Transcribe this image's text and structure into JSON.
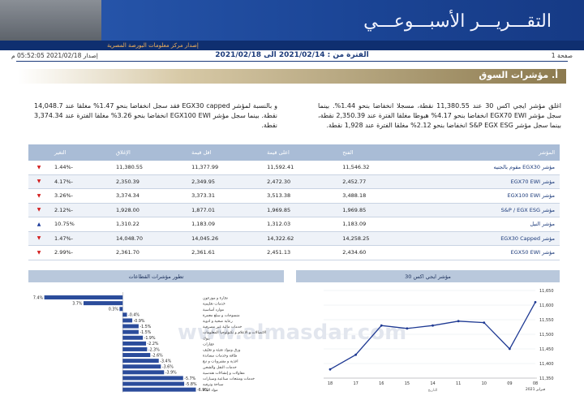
{
  "header": {
    "title": "التقـــريـــر الأسبـــوعـــي",
    "subtitle": "إصدار مركز معلومات البورصة المصرية",
    "page": "صفحة 1",
    "period": "الفترة من : 2021/02/14 الى 2021/02/18",
    "issued": "إصدار 2021/02/18 05:52:05 م"
  },
  "section": {
    "title": "أ. مؤشرات السوق",
    "paragraphs": [
      "اغلق مؤشر ايجي اكس 30 عند 11,380.55 نقطة، مسجلا انخفاضا بنحو 1.44%. بينما سجل مؤشر EGX70 EWI انخفاضا بنحو 4.17% هبوطا مغلقا الفترة عند 2,350.39 نقطة، بينما سجل مؤشر S&P EGX ESG انخفاضا بنحو 2.12% مغلقا الفترة عند 1,928 نقطة.",
      "و بالنسبة لمؤشر EGX30 capped فقد سجل انخفاضا بنحو 1.47% مغلقا عند 14,048.7 نقطة. بينما سجل مؤشر EGX100 EWI انخفاضا بنحو 3.26% مغلقا الفترة عند 3,374.34 نقطة."
    ]
  },
  "table": {
    "columns": [
      "المؤشر",
      "الفتح",
      "اعلى قيمة",
      "اقل قيمة",
      "الإغلاق",
      "التغير"
    ],
    "rows": [
      [
        "مؤشر EGX30 مقوم بالجنيه",
        "11,546.32",
        "11,592.41",
        "11,377.99",
        "11,380.55",
        "-1.44%"
      ],
      [
        "مؤشر EGX70 EWI",
        "2,452.77",
        "2,472.30",
        "2,349.95",
        "2,350.39",
        "-4.17%"
      ],
      [
        "مؤشر EGX100 EWI",
        "3,488.18",
        "3,513.38",
        "3,373.31",
        "3,374.34",
        "-3.26%"
      ],
      [
        "مؤشر S&P / EGX ESG",
        "1,969.85",
        "1,969.85",
        "1,877.01",
        "1,928.00",
        "-2.12%"
      ],
      [
        "مؤشر النيل",
        "1,183.09",
        "1,312.03",
        "1,183.09",
        "1,310.22",
        "10.75%"
      ],
      [
        "مؤشر EGX30 Capped",
        "14,258.25",
        "14,322.62",
        "14,045.26",
        "14,048.70",
        "-1.47%"
      ],
      [
        "مؤشر EGX50 EWI",
        "2,434.60",
        "2,451.13",
        "2,361.61",
        "2,361.70",
        "-2.99%"
      ]
    ]
  },
  "chart_data": [
    {
      "type": "hbar",
      "title": "تطور مؤشرات القطاعات",
      "categories": [
        "تجارة و موزعون",
        "خدمات تعليمية",
        "موارد أساسية",
        "منسوجات و سلع معمرة",
        "رعاية صحية و ادوية",
        "خدمات مالية غير مصرفية",
        "الاتصالات و الاعلام و تكنولوجيا المعلومات",
        "بنوك",
        "عقارات",
        "ورق ومواد تعبئة و تغليف",
        "طاقة وخدمات مساندة",
        "اغذية و مشروبات و تبغ",
        "خدمات النقل والشحن",
        "مقاولات و إنشاءات هندسية",
        "خدمات ومنتجات صناعية وسيارات",
        "سياحة وترفيه",
        "مواد البناء"
      ],
      "values": [
        7.4,
        3.7,
        0.3,
        -0.4,
        -0.9,
        -1.5,
        -1.5,
        -1.9,
        -2.2,
        -2.3,
        -2.6,
        -3.4,
        -3.6,
        -3.9,
        -5.7,
        -5.8,
        -6.9
      ],
      "value_labels": [
        "7.4%",
        "3.7%",
        "0.3%",
        "-0.4%",
        "-0.9%",
        "-1.5%",
        "-1.5%",
        "-1.9%",
        "-2.2%",
        "-2.3%",
        "-2.6%",
        "-3.4%",
        "-3.6%",
        "-3.9%",
        "-5.7%",
        "-5.8%",
        "-6.9%"
      ],
      "color": "#2b4c9b",
      "xlim": [
        7.6,
        -7.4
      ]
    },
    {
      "type": "line",
      "title": "مؤشر ايجي اكس 30",
      "x_label": "التاريخ",
      "x_note": "فبراير 2021",
      "categories": [
        "18",
        "17",
        "16",
        "15",
        "14",
        "11",
        "10",
        "09",
        "08"
      ],
      "values": [
        11380,
        11430,
        11530,
        11520,
        11530,
        11545,
        11540,
        11450,
        11610
      ],
      "color": "#1f3a93",
      "ylim": [
        11350,
        11650
      ],
      "yticks": [
        {
          "value": 11350,
          "label": "11,350"
        },
        {
          "value": 11400,
          "label": "11,400"
        },
        {
          "value": 11450,
          "label": "11,450"
        },
        {
          "value": 11500,
          "label": "11,500"
        },
        {
          "value": 11550,
          "label": "11,550"
        },
        {
          "value": 11600,
          "label": "11,600"
        },
        {
          "value": 11650,
          "label": "11,650"
        }
      ]
    }
  ],
  "watermark": "www.almasdar.com"
}
